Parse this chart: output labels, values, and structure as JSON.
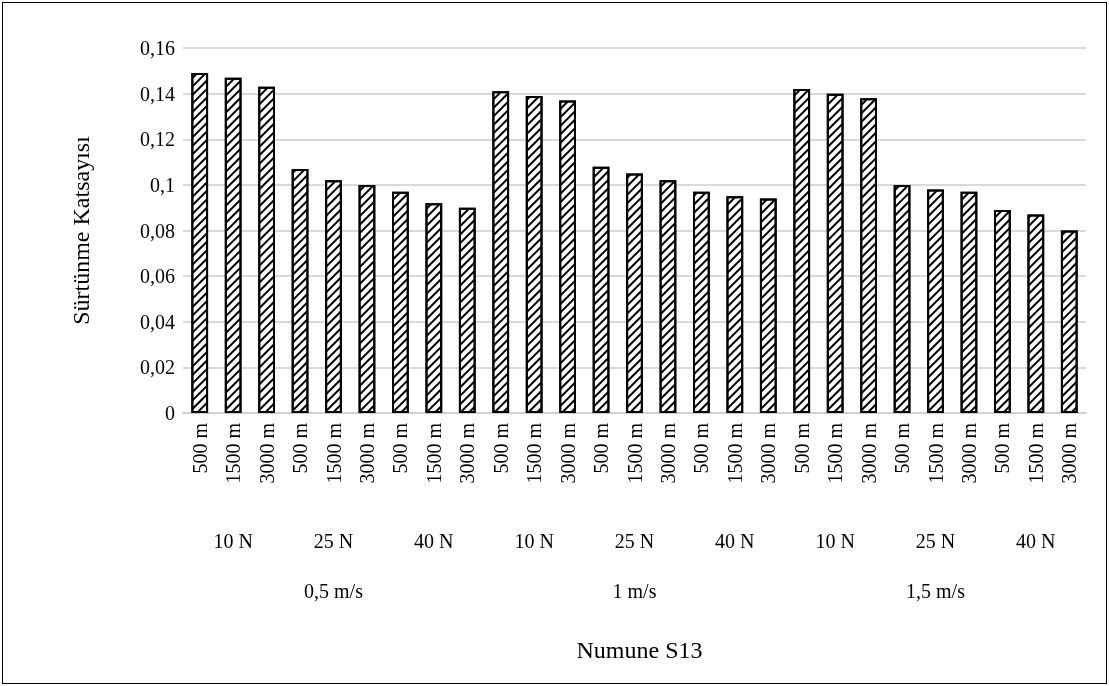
{
  "chart_data": {
    "type": "bar",
    "ylabel": "Sürtünme Katsayısı",
    "categories": [
      "500 m",
      "1500 m",
      "3000 m",
      "500 m",
      "1500 m",
      "3000 m",
      "500 m",
      "1500 m",
      "3000 m",
      "500 m",
      "1500 m",
      "3000 m",
      "500 m",
      "1500 m",
      "3000 m",
      "500 m",
      "1500 m",
      "3000 m",
      "500 m",
      "1500 m",
      "3000 m",
      "500 m",
      "1500 m",
      "3000 m",
      "500 m",
      "1500 m",
      "3000 m"
    ],
    "values": [
      0.149,
      0.147,
      0.143,
      0.107,
      0.102,
      0.1,
      0.097,
      0.092,
      0.09,
      0.141,
      0.139,
      0.137,
      0.108,
      0.105,
      0.102,
      0.097,
      0.095,
      0.094,
      0.142,
      0.14,
      0.138,
      0.1,
      0.098,
      0.097,
      0.089,
      0.087,
      0.08
    ],
    "color": "#ffffff",
    "annotations": [
      "10 N",
      "25 N",
      "40 N",
      "10 N",
      "25 N",
      "40 N",
      "10 N",
      "25 N",
      "40 N",
      "0,5 m/s",
      "1 m/s",
      "1,5 m/s",
      "Numune S13"
    ],
    "ylim": [
      0,
      0.16
    ],
    "yticks": [
      0,
      {
        "value": 0.02,
        "label": "0,02"
      },
      {
        "value": 0.04,
        "label": "0,04"
      },
      {
        "value": 0.06,
        "label": "0,06"
      },
      {
        "value": 0.08,
        "label": "0,08"
      },
      {
        "value": 0.1,
        "label": "0,1"
      },
      {
        "value": 0.12,
        "label": "0,12"
      },
      {
        "value": 0.14,
        "label": "0,14"
      },
      {
        "value": 0.16,
        "label": "0,16"
      }
    ],
    "grid": "y"
  }
}
